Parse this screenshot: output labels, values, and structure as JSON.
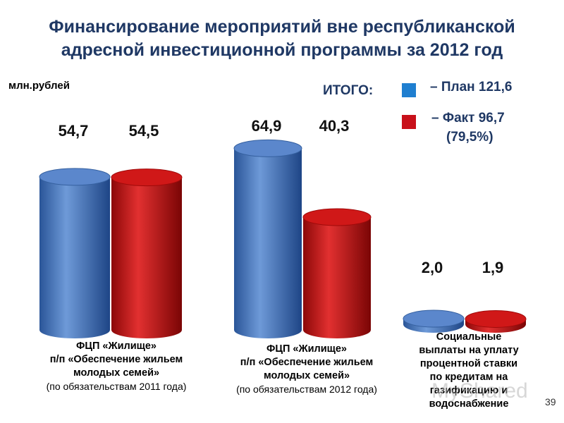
{
  "header": {
    "title_line1": "Финансирование мероприятий вне республиканской",
    "title_line2": "адресной инвестиционной программы за 2012 год"
  },
  "unit_label": "млн.рублей",
  "legend": {
    "total_label": "ИТОГО:",
    "plan_text": "– План 121,6",
    "fact_text": "– Факт 96,7",
    "fact_percent": "(79,5%)"
  },
  "captions": {
    "group1": {
      "line1": "ФЦП «Жилище»",
      "line2": "п/п «Обеспечение жильем",
      "line3": "молодых семей»",
      "line4": "(по обязательствам 2011 года)"
    },
    "group2": {
      "line1": "ФЦП «Жилище»",
      "line2": "п/п «Обеспечение жильем",
      "line3": "молодых семей»",
      "line4": "(по обязательствам 2012 года)"
    },
    "group3": {
      "line1": "Социальные",
      "line2": "выплаты на уплату",
      "line3": "процентной ставки",
      "line4": "по кредитам на",
      "line5": "газификацию и",
      "line6": "водоснабжение"
    }
  },
  "watermark": "MyShared",
  "page_number": "39",
  "colors": {
    "plan": "#3a6fc0",
    "fact": "#c01010",
    "title": "#1f3864",
    "legend_plan": "#1f7fd0",
    "legend_fact": "#c8101a"
  },
  "chart_data": {
    "type": "bar",
    "style": "3d-cylinder",
    "categories": [
      "ФЦП «Жилище» (по обязательствам 2011 года)",
      "ФЦП «Жилище» (по обязательствам 2012 года)",
      "Социальные выплаты"
    ],
    "series": [
      {
        "name": "План",
        "values": [
          54.7,
          64.9,
          2.0
        ],
        "labels": [
          "54,7",
          "64,9",
          "2,0"
        ]
      },
      {
        "name": "Факт",
        "values": [
          54.5,
          40.3,
          1.9
        ],
        "labels": [
          "54,5",
          "40,3",
          "1,9"
        ]
      }
    ],
    "ylabel": "млн.рублей",
    "grid": false,
    "legend_position": "top-right"
  }
}
